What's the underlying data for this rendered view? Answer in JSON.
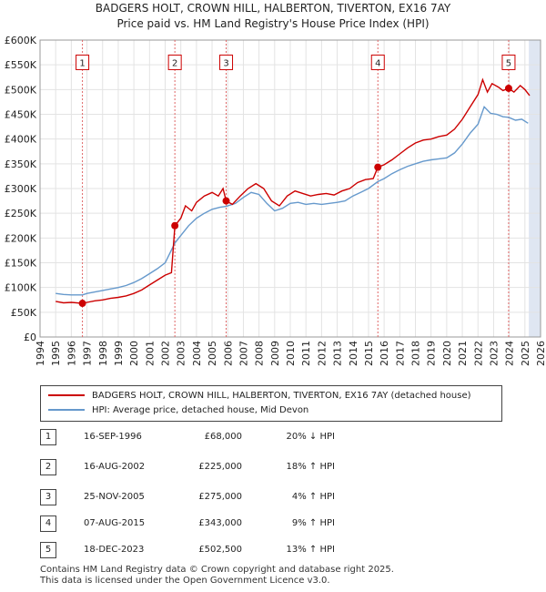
{
  "chart_data": {
    "type": "line",
    "title": "BADGERS HOLT, CROWN HILL, HALBERTON, TIVERTON, EX16 7AY",
    "subtitle": "Price paid vs. HM Land Registry's House Price Index (HPI)",
    "xlim": [
      1994,
      2026
    ],
    "ylim": [
      0,
      600000
    ],
    "x_ticks": [
      "1994",
      "1995",
      "1996",
      "1997",
      "1998",
      "1999",
      "2000",
      "2001",
      "2002",
      "2003",
      "2004",
      "2005",
      "2006",
      "2007",
      "2008",
      "2009",
      "2010",
      "2011",
      "2012",
      "2013",
      "2014",
      "2015",
      "2016",
      "2017",
      "2018",
      "2019",
      "2020",
      "2021",
      "2022",
      "2023",
      "2024",
      "2025",
      "2026"
    ],
    "y_ticks": [
      "£0",
      "£50K",
      "£100K",
      "£150K",
      "£200K",
      "£250K",
      "£300K",
      "£350K",
      "£400K",
      "£450K",
      "£500K",
      "£550K",
      "£600K"
    ],
    "forecast_shade_from": 2025.25,
    "series": [
      {
        "name": "BADGERS HOLT, CROWN HILL, HALBERTON, TIVERTON, EX16 7AY (detached house)",
        "color": "#cc0000",
        "points": [
          [
            1995.0,
            72000
          ],
          [
            1995.5,
            69000
          ],
          [
            1996.0,
            70000
          ],
          [
            1996.71,
            68000
          ],
          [
            1997.0,
            70000
          ],
          [
            1997.5,
            73000
          ],
          [
            1998.0,
            75000
          ],
          [
            1998.5,
            78000
          ],
          [
            1999.0,
            80000
          ],
          [
            1999.5,
            83000
          ],
          [
            2000.0,
            88000
          ],
          [
            2000.5,
            95000
          ],
          [
            2001.0,
            105000
          ],
          [
            2001.5,
            115000
          ],
          [
            2002.0,
            125000
          ],
          [
            2002.4,
            130000
          ],
          [
            2002.62,
            225000
          ],
          [
            2003.0,
            240000
          ],
          [
            2003.3,
            265000
          ],
          [
            2003.7,
            255000
          ],
          [
            2004.0,
            272000
          ],
          [
            2004.5,
            285000
          ],
          [
            2005.0,
            292000
          ],
          [
            2005.4,
            285000
          ],
          [
            2005.7,
            300000
          ],
          [
            2005.9,
            275000
          ],
          [
            2006.3,
            268000
          ],
          [
            2006.8,
            285000
          ],
          [
            2007.3,
            300000
          ],
          [
            2007.8,
            310000
          ],
          [
            2008.3,
            300000
          ],
          [
            2008.8,
            275000
          ],
          [
            2009.3,
            265000
          ],
          [
            2009.8,
            285000
          ],
          [
            2010.3,
            295000
          ],
          [
            2010.8,
            290000
          ],
          [
            2011.3,
            285000
          ],
          [
            2011.8,
            288000
          ],
          [
            2012.3,
            290000
          ],
          [
            2012.8,
            287000
          ],
          [
            2013.3,
            295000
          ],
          [
            2013.8,
            300000
          ],
          [
            2014.3,
            312000
          ],
          [
            2014.8,
            318000
          ],
          [
            2015.3,
            320000
          ],
          [
            2015.6,
            343000
          ],
          [
            2016.0,
            348000
          ],
          [
            2016.5,
            358000
          ],
          [
            2017.0,
            370000
          ],
          [
            2017.5,
            382000
          ],
          [
            2018.0,
            392000
          ],
          [
            2018.5,
            398000
          ],
          [
            2019.0,
            400000
          ],
          [
            2019.5,
            405000
          ],
          [
            2020.0,
            408000
          ],
          [
            2020.5,
            420000
          ],
          [
            2021.0,
            440000
          ],
          [
            2021.5,
            465000
          ],
          [
            2022.0,
            490000
          ],
          [
            2022.3,
            520000
          ],
          [
            2022.6,
            495000
          ],
          [
            2022.9,
            512000
          ],
          [
            2023.3,
            505000
          ],
          [
            2023.6,
            498000
          ],
          [
            2023.96,
            502500
          ],
          [
            2024.3,
            495000
          ],
          [
            2024.7,
            508000
          ],
          [
            2025.0,
            500000
          ],
          [
            2025.3,
            488000
          ]
        ]
      },
      {
        "name": "HPI: Average price, detached house, Mid Devon",
        "color": "#6699cc",
        "points": [
          [
            1995.0,
            88000
          ],
          [
            1995.5,
            86000
          ],
          [
            1996.0,
            85000
          ],
          [
            1996.71,
            85000
          ],
          [
            1997.0,
            88000
          ],
          [
            1997.5,
            91000
          ],
          [
            1998.0,
            94000
          ],
          [
            1998.5,
            97000
          ],
          [
            1999.0,
            100000
          ],
          [
            1999.5,
            104000
          ],
          [
            2000.0,
            110000
          ],
          [
            2000.5,
            118000
          ],
          [
            2001.0,
            128000
          ],
          [
            2001.5,
            138000
          ],
          [
            2002.0,
            150000
          ],
          [
            2002.62,
            190000
          ],
          [
            2003.0,
            205000
          ],
          [
            2003.5,
            225000
          ],
          [
            2004.0,
            240000
          ],
          [
            2004.5,
            250000
          ],
          [
            2005.0,
            258000
          ],
          [
            2005.5,
            262000
          ],
          [
            2005.9,
            264000
          ],
          [
            2006.5,
            270000
          ],
          [
            2007.0,
            282000
          ],
          [
            2007.5,
            292000
          ],
          [
            2008.0,
            288000
          ],
          [
            2008.5,
            270000
          ],
          [
            2009.0,
            255000
          ],
          [
            2009.5,
            260000
          ],
          [
            2010.0,
            270000
          ],
          [
            2010.5,
            272000
          ],
          [
            2011.0,
            268000
          ],
          [
            2011.5,
            270000
          ],
          [
            2012.0,
            268000
          ],
          [
            2012.5,
            270000
          ],
          [
            2013.0,
            272000
          ],
          [
            2013.5,
            275000
          ],
          [
            2014.0,
            285000
          ],
          [
            2014.5,
            292000
          ],
          [
            2015.0,
            300000
          ],
          [
            2015.6,
            314000
          ],
          [
            2016.0,
            320000
          ],
          [
            2016.5,
            330000
          ],
          [
            2017.0,
            338000
          ],
          [
            2017.5,
            345000
          ],
          [
            2018.0,
            350000
          ],
          [
            2018.5,
            355000
          ],
          [
            2019.0,
            358000
          ],
          [
            2019.5,
            360000
          ],
          [
            2020.0,
            362000
          ],
          [
            2020.5,
            372000
          ],
          [
            2021.0,
            390000
          ],
          [
            2021.5,
            412000
          ],
          [
            2022.0,
            430000
          ],
          [
            2022.4,
            465000
          ],
          [
            2022.8,
            452000
          ],
          [
            2023.2,
            450000
          ],
          [
            2023.6,
            445000
          ],
          [
            2023.96,
            444000
          ],
          [
            2024.4,
            438000
          ],
          [
            2024.8,
            440000
          ],
          [
            2025.2,
            432000
          ]
        ]
      }
    ],
    "markers": [
      {
        "label": "1",
        "x": 1996.71,
        "y": 68000
      },
      {
        "label": "2",
        "x": 2002.62,
        "y": 225000
      },
      {
        "label": "3",
        "x": 2005.9,
        "y": 275000
      },
      {
        "label": "4",
        "x": 2015.6,
        "y": 343000
      },
      {
        "label": "5",
        "x": 2023.96,
        "y": 502500
      }
    ]
  },
  "legend": {
    "property": "BADGERS HOLT, CROWN HILL, HALBERTON, TIVERTON, EX16 7AY (detached house)",
    "hpi": "HPI: Average price, detached house, Mid Devon",
    "property_color": "#cc0000",
    "hpi_color": "#6699cc"
  },
  "sales": [
    {
      "num": "1",
      "date": "16-SEP-1996",
      "price": "£68,000",
      "hpi": "20% ↓ HPI"
    },
    {
      "num": "2",
      "date": "16-AUG-2002",
      "price": "£225,000",
      "hpi": "18% ↑ HPI"
    },
    {
      "num": "3",
      "date": "25-NOV-2005",
      "price": "£275,000",
      "hpi": "4% ↑ HPI"
    },
    {
      "num": "4",
      "date": "07-AUG-2015",
      "price": "£343,000",
      "hpi": "9% ↑ HPI"
    },
    {
      "num": "5",
      "date": "18-DEC-2023",
      "price": "£502,500",
      "hpi": "13% ↑ HPI"
    }
  ],
  "footer": {
    "line1": "Contains HM Land Registry data © Crown copyright and database right 2025.",
    "line2": "This data is licensed under the Open Government Licence v3.0."
  }
}
